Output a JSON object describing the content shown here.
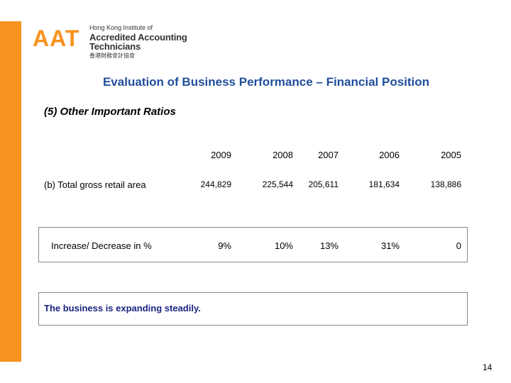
{
  "logo": {
    "mark": "AAT",
    "line1": "Hong Kong Institute of",
    "line2": "Accredited Accounting Technicians",
    "line3": "香港財務會計協會"
  },
  "title": "Evaluation of Business Performance – Financial Position",
  "subtitle": "(5) Other Important Ratios",
  "table": {
    "years": [
      "2009",
      "2008",
      "2007",
      "2006",
      "2005"
    ],
    "row1_label": "(b) Total gross retail area",
    "row1_values": [
      "244,829",
      "225,544",
      "205,611",
      "181,634",
      "138,886"
    ],
    "row2_label": "Increase/ Decrease in %",
    "row2_values": [
      "9%",
      "10%",
      "13%",
      "31%",
      "0"
    ]
  },
  "conclusion": "The business is expanding steadily.",
  "page_number": "14",
  "colors": {
    "accent": "#f7931e",
    "title": "#1f4e9b",
    "conclusion": "#1a237e"
  }
}
